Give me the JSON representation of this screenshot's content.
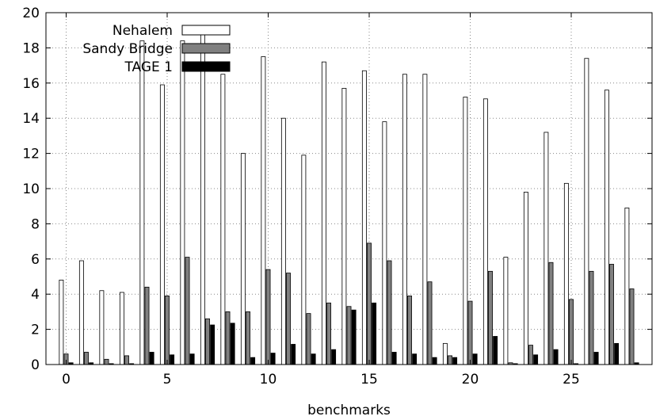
{
  "chart_data": {
    "type": "bar",
    "title": "",
    "xlabel": "benchmarks",
    "ylabel": "",
    "xlim": [
      -1,
      29
    ],
    "ylim": [
      0,
      20
    ],
    "x_ticks": [
      0,
      5,
      10,
      15,
      20,
      25
    ],
    "y_ticks": [
      0,
      2,
      4,
      6,
      8,
      10,
      12,
      14,
      16,
      18,
      20
    ],
    "grid": true,
    "legend_position": "top-left",
    "categories": [
      0,
      1,
      2,
      3,
      4,
      5,
      6,
      7,
      8,
      9,
      10,
      11,
      12,
      13,
      14,
      15,
      16,
      17,
      18,
      19,
      20,
      21,
      22,
      23,
      24,
      25,
      26,
      27,
      28
    ],
    "series": [
      {
        "name": "Nehalem",
        "color": "#ffffff",
        "values": [
          4.8,
          5.9,
          4.2,
          4.1,
          18.4,
          15.9,
          18.4,
          19.0,
          16.5,
          12.0,
          17.5,
          14.0,
          11.9,
          17.2,
          15.7,
          16.7,
          13.8,
          16.5,
          16.5,
          1.2,
          15.2,
          15.1,
          6.1,
          9.8,
          13.2,
          10.3,
          17.4,
          15.6,
          8.9
        ]
      },
      {
        "name": "Sandy Bridge",
        "color": "#808080",
        "values": [
          0.6,
          0.7,
          0.3,
          0.5,
          4.4,
          3.9,
          6.1,
          2.6,
          3.0,
          3.0,
          5.4,
          5.2,
          2.9,
          3.5,
          3.3,
          6.9,
          5.9,
          3.9,
          4.7,
          0.5,
          3.6,
          5.3,
          0.1,
          1.1,
          5.8,
          3.7,
          5.3,
          5.7,
          4.3
        ]
      },
      {
        "name": "TAGE 1",
        "color": "#000000",
        "values": [
          0.1,
          0.1,
          0.05,
          0.05,
          0.7,
          0.55,
          0.6,
          2.25,
          2.35,
          0.4,
          0.65,
          1.15,
          0.6,
          0.85,
          3.1,
          3.5,
          0.7,
          0.6,
          0.4,
          0.4,
          0.6,
          1.6,
          0.05,
          0.55,
          0.85,
          0.05,
          0.7,
          1.2,
          0.1
        ]
      }
    ]
  }
}
